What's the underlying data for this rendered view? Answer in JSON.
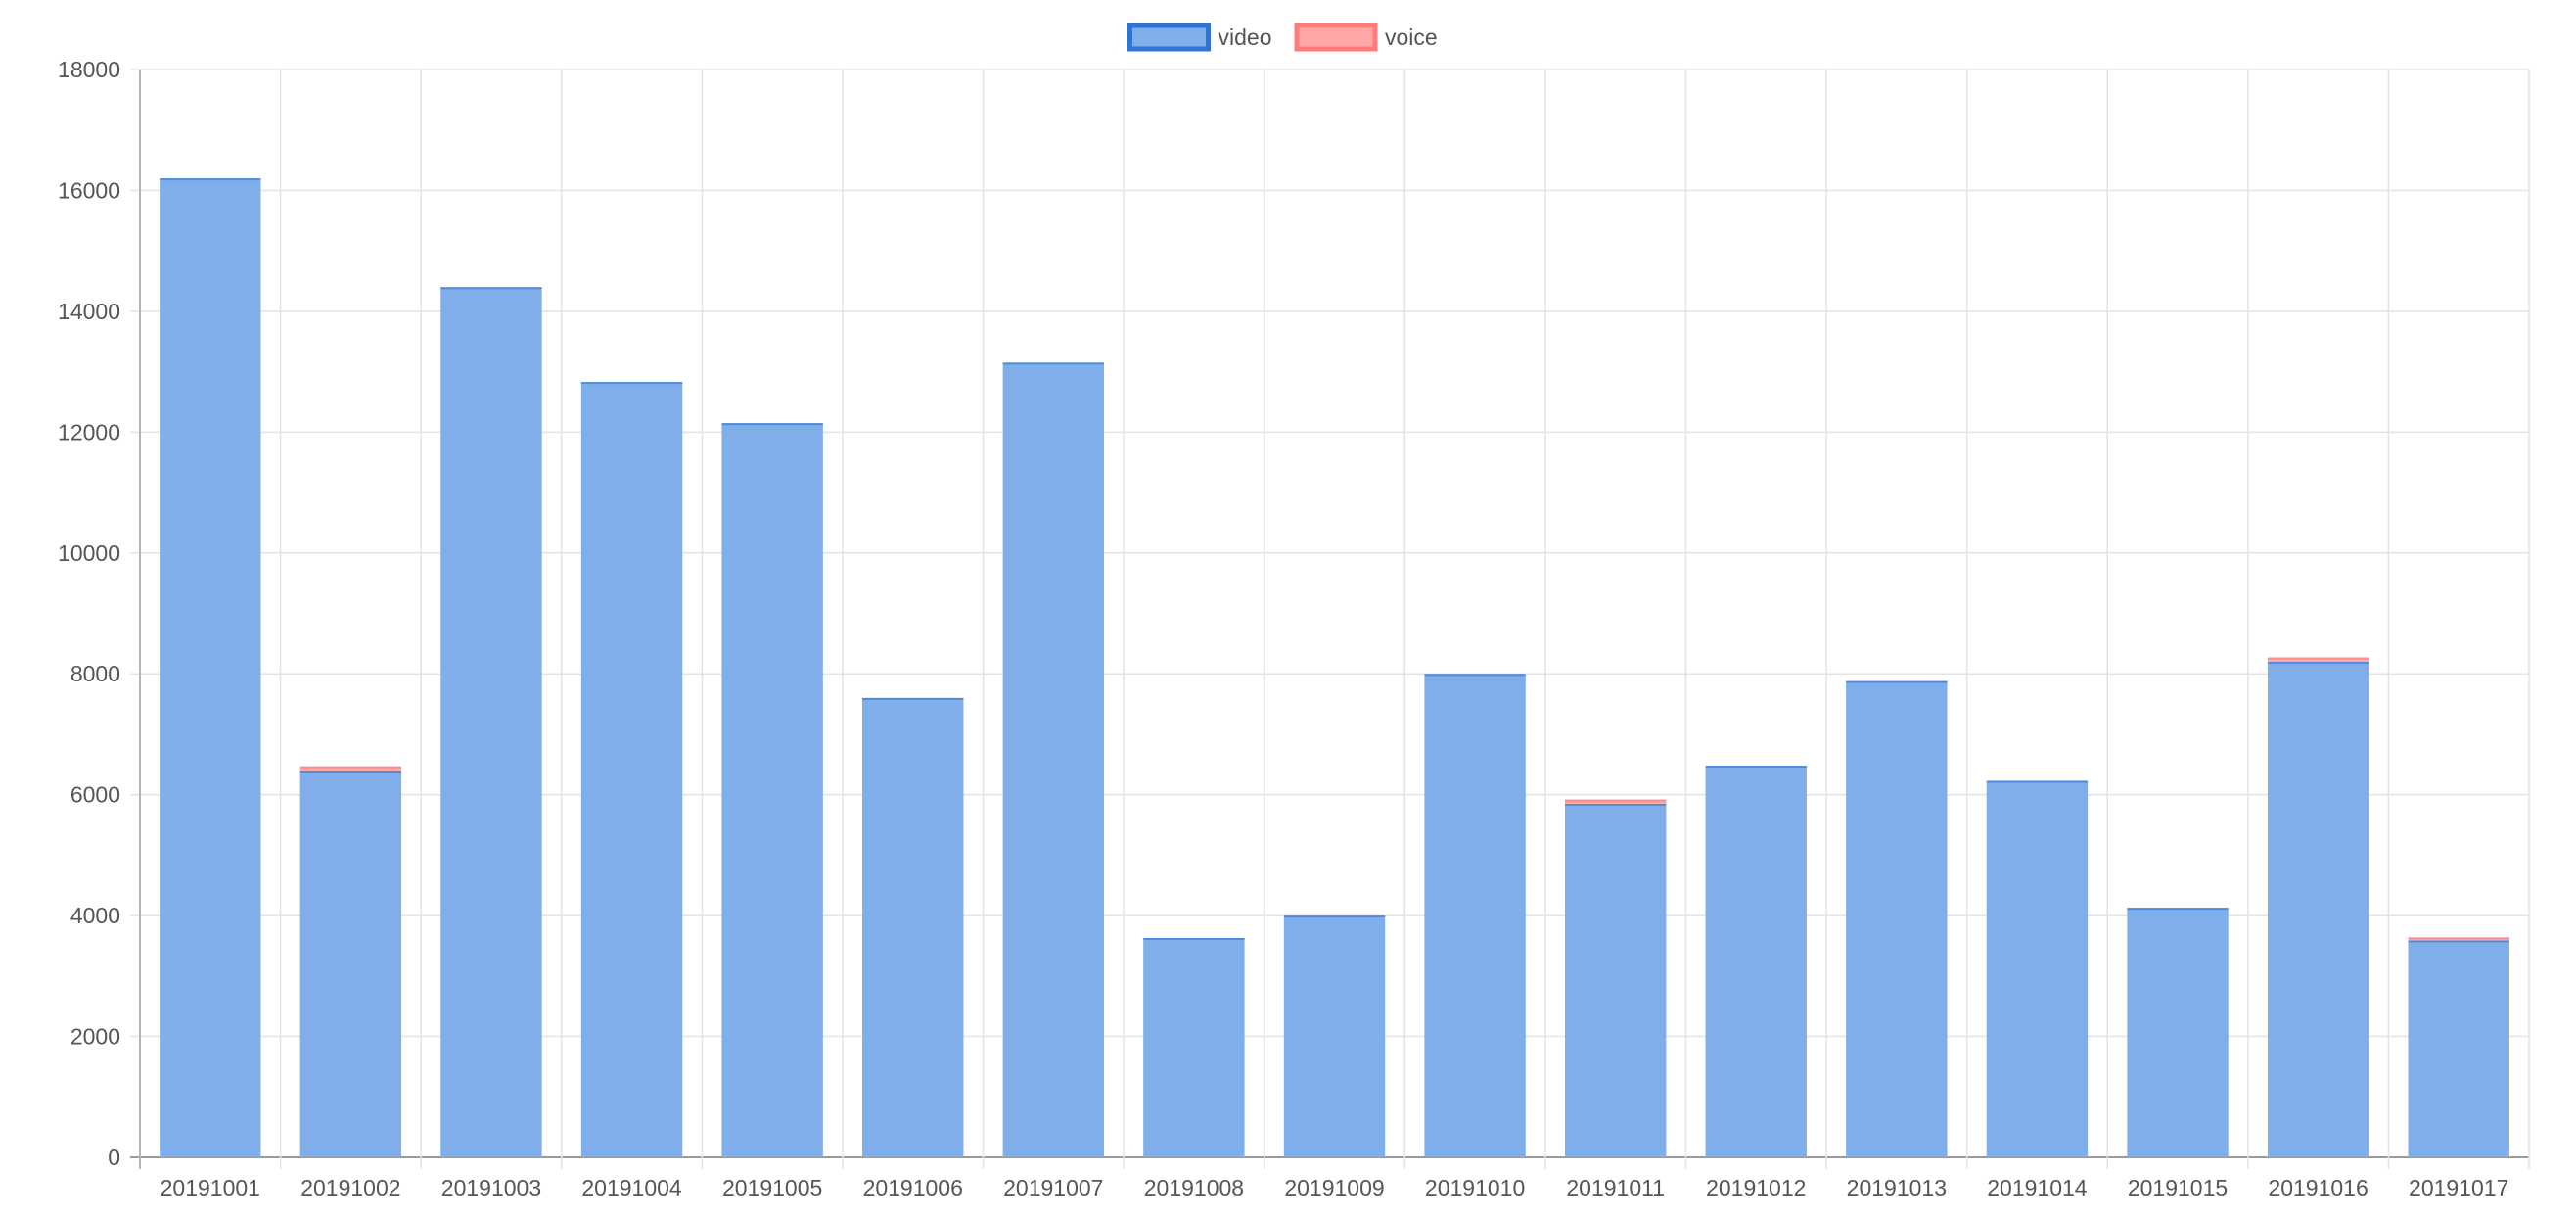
{
  "chart_data": {
    "type": "bar",
    "stacked": true,
    "title": "",
    "xlabel": "",
    "ylabel": "",
    "categories": [
      "20191001",
      "20191002",
      "20191003",
      "20191004",
      "20191005",
      "20191006",
      "20191007",
      "20191008",
      "20191009",
      "20191010",
      "20191011",
      "20191012",
      "20191013",
      "20191014",
      "20191015",
      "20191016",
      "20191017"
    ],
    "series": [
      {
        "name": "video",
        "color": "#7FAEEA",
        "border_color": "#2F74D0",
        "values": [
          16200,
          6400,
          14400,
          12830,
          12150,
          7600,
          13150,
          3630,
          4000,
          8000,
          5850,
          6480,
          7880,
          6230,
          4130,
          8200,
          3590
        ]
      },
      {
        "name": "voice",
        "color": "#FFA7A7",
        "border_color": "#FF7B7B",
        "values": [
          0,
          70,
          0,
          0,
          0,
          0,
          0,
          0,
          0,
          0,
          70,
          0,
          0,
          0,
          0,
          70,
          50
        ]
      }
    ],
    "ylim": [
      0,
      18000
    ],
    "yticks": [
      0,
      2000,
      4000,
      6000,
      8000,
      10000,
      12000,
      14000,
      16000,
      18000
    ],
    "grid": true,
    "legend": {
      "position": "top-center",
      "items": [
        "video",
        "voice"
      ]
    }
  }
}
